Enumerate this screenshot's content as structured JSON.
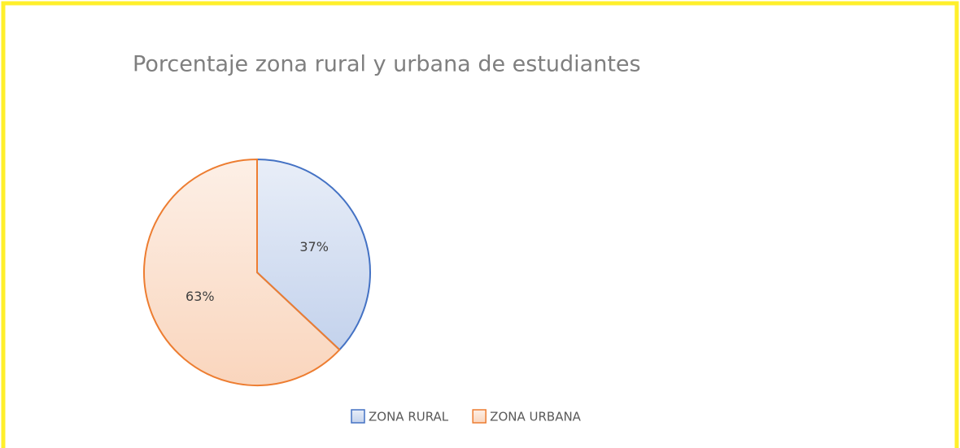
{
  "chart_data": {
    "type": "pie",
    "title": "Porcentaje zona rural y urbana de estudiantes",
    "categories": [
      "ZONA RURAL",
      "ZONA URBANA"
    ],
    "values": [
      37,
      63
    ],
    "value_labels": [
      "37%",
      "63%"
    ],
    "colors": [
      "#4472c4",
      "#ed7d31"
    ],
    "legend": "bottom"
  }
}
